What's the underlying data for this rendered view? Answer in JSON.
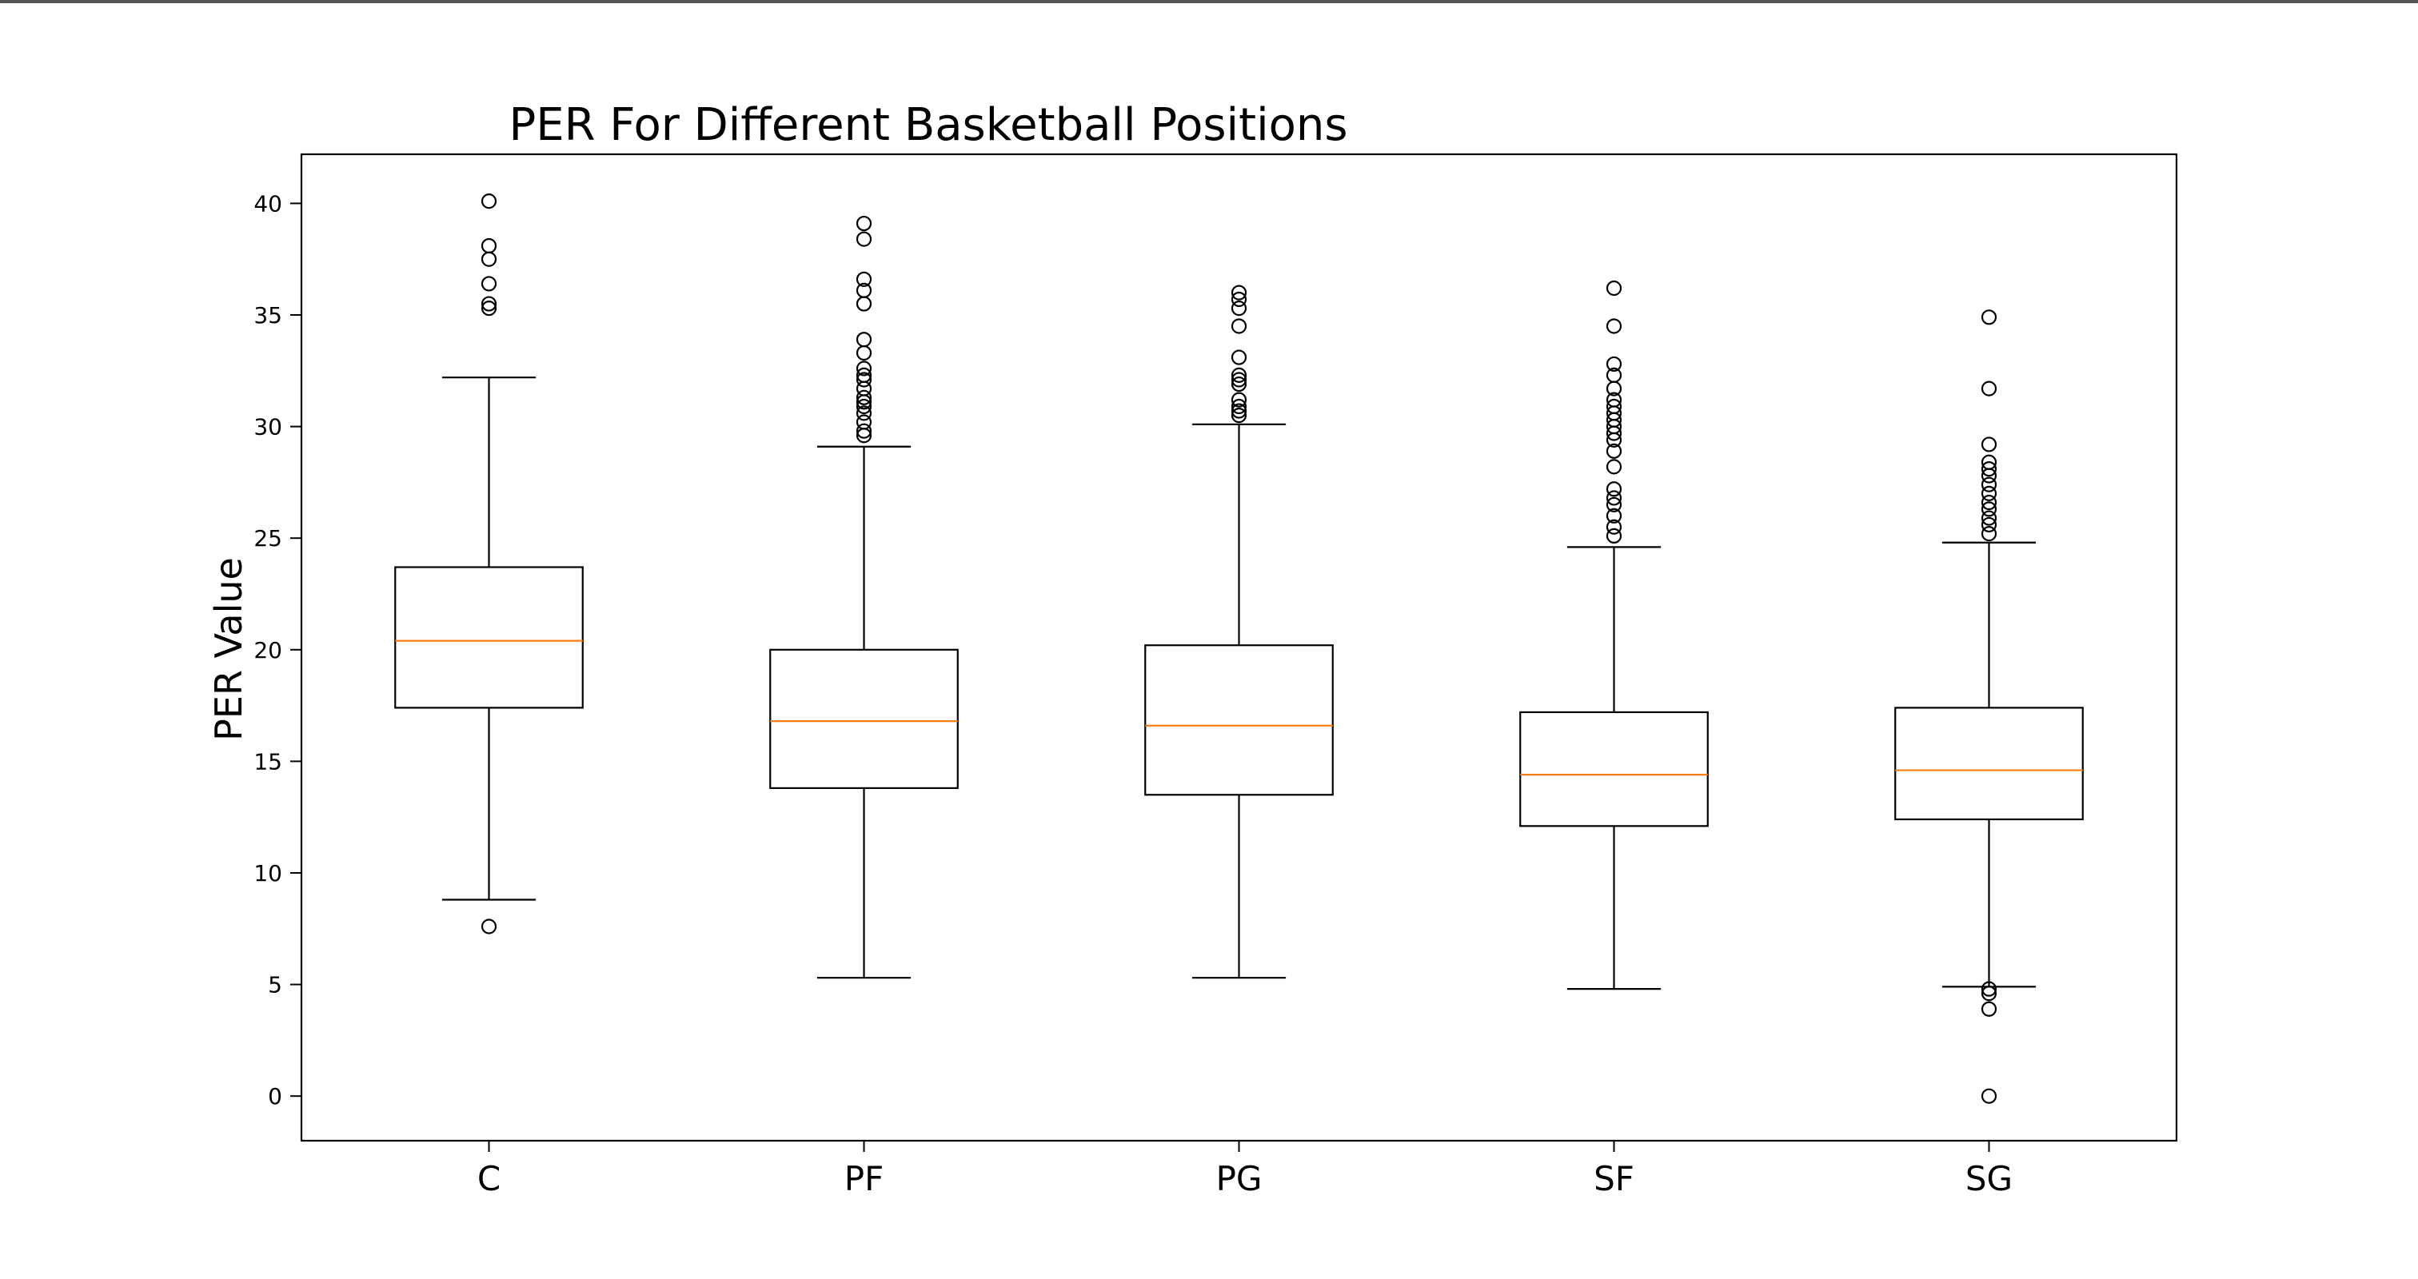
{
  "chart_data": {
    "type": "box",
    "title": "PER For Different Basketball Positions",
    "xlabel": "",
    "ylabel": "PER Value",
    "ylim": [
      -2,
      42.2
    ],
    "yticks": [
      0,
      5,
      10,
      15,
      20,
      25,
      30,
      35,
      40
    ],
    "grid": false,
    "categories": [
      "C",
      "PF",
      "PG",
      "SF",
      "SG"
    ],
    "boxes": [
      {
        "category": "C",
        "whisker_low": 8.8,
        "q1": 17.4,
        "median": 20.4,
        "q3": 23.7,
        "whisker_high": 32.2,
        "outliers": [
          7.6,
          35.3,
          35.5,
          36.4,
          37.5,
          38.1,
          40.1
        ]
      },
      {
        "category": "PF",
        "whisker_low": 5.3,
        "q1": 13.8,
        "median": 16.8,
        "q3": 20.0,
        "whisker_high": 29.1,
        "outliers": [
          29.6,
          29.8,
          30.2,
          30.6,
          30.9,
          31.1,
          31.3,
          31.7,
          32.1,
          32.3,
          32.6,
          33.3,
          33.9,
          35.5,
          36.1,
          36.6,
          38.4,
          39.1
        ]
      },
      {
        "category": "PG",
        "whisker_low": 5.3,
        "q1": 13.5,
        "median": 16.6,
        "q3": 20.2,
        "whisker_high": 30.1,
        "outliers": [
          30.5,
          30.7,
          30.9,
          31.2,
          31.9,
          32.1,
          32.3,
          33.1,
          34.5,
          35.3,
          35.7,
          36.0
        ]
      },
      {
        "category": "SF",
        "whisker_low": 4.8,
        "q1": 12.1,
        "median": 14.4,
        "q3": 17.2,
        "whisker_high": 24.6,
        "outliers": [
          25.1,
          25.5,
          26.0,
          26.5,
          26.8,
          27.2,
          28.2,
          28.9,
          29.4,
          29.7,
          30.0,
          30.3,
          30.6,
          30.9,
          31.2,
          31.7,
          32.3,
          32.8,
          34.5,
          36.2
        ]
      },
      {
        "category": "SG",
        "whisker_low": 4.9,
        "q1": 12.4,
        "median": 14.6,
        "q3": 17.4,
        "whisker_high": 24.8,
        "outliers": [
          0.0,
          3.9,
          4.6,
          4.8,
          25.2,
          25.6,
          25.9,
          26.3,
          26.6,
          27.0,
          27.4,
          27.8,
          28.1,
          28.4,
          29.2,
          31.7,
          34.9
        ]
      }
    ],
    "colors": {
      "box": "#000000",
      "median": "#ff7f0e",
      "outlier_edge": "#000000"
    }
  }
}
